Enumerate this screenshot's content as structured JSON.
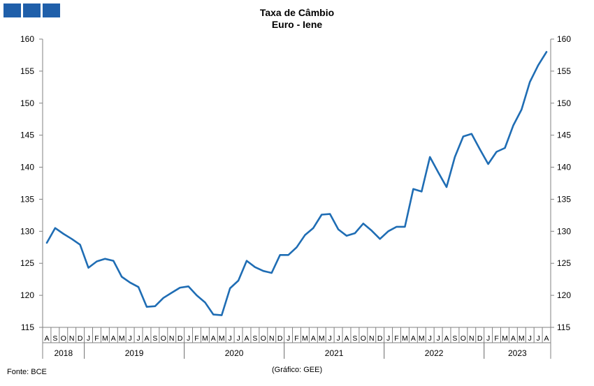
{
  "header": {
    "title_line1": "Taxa de Câmbio",
    "title_line2": "Euro - Iene"
  },
  "footer": {
    "source": "Fonte: BCE",
    "credit": "(Gráfico: GEE)"
  },
  "colors": {
    "line": "#1f6db4",
    "logo": "#1f5faa",
    "axis": "#808080"
  },
  "chart_data": {
    "type": "line",
    "title": "Taxa de Câmbio Euro - Iene",
    "ylim": [
      115,
      160
    ],
    "yticks": [
      115,
      120,
      125,
      130,
      135,
      140,
      145,
      150,
      155,
      160
    ],
    "y_axis_sides": [
      "left",
      "right"
    ],
    "grid": false,
    "legend": "none",
    "month_labels": [
      "A",
      "S",
      "O",
      "N",
      "D",
      "J",
      "F",
      "M",
      "A",
      "M",
      "J",
      "J",
      "A",
      "S",
      "O",
      "N",
      "D",
      "J",
      "F",
      "M",
      "A",
      "M",
      "J",
      "J",
      "A",
      "S",
      "O",
      "N",
      "D",
      "J",
      "F",
      "M",
      "A",
      "M",
      "J",
      "J",
      "A",
      "S",
      "O",
      "N",
      "D",
      "J",
      "F",
      "M",
      "A",
      "M",
      "J",
      "J",
      "A",
      "S",
      "O",
      "N",
      "D",
      "J",
      "F",
      "M",
      "A",
      "M",
      "J",
      "J",
      "A"
    ],
    "years": [
      {
        "label": "2018",
        "start": 0,
        "count": 5
      },
      {
        "label": "2019",
        "start": 5,
        "count": 12
      },
      {
        "label": "2020",
        "start": 17,
        "count": 12
      },
      {
        "label": "2021",
        "start": 29,
        "count": 12
      },
      {
        "label": "2022",
        "start": 41,
        "count": 12
      },
      {
        "label": "2023",
        "start": 53,
        "count": 8
      }
    ],
    "series": [
      {
        "values": [
          128.2,
          130.5,
          129.6,
          128.8,
          127.9,
          124.3,
          125.3,
          125.7,
          125.4,
          122.9,
          122.0,
          121.3,
          118.2,
          118.3,
          119.6,
          120.4,
          121.2,
          121.4,
          120.0,
          118.9,
          117.0,
          116.9,
          121.1,
          122.3,
          125.4,
          124.4,
          123.8,
          123.5,
          126.3,
          126.3,
          127.5,
          129.4,
          130.5,
          132.6,
          132.7,
          130.3,
          129.3,
          129.7,
          131.2,
          130.1,
          128.8,
          130.0,
          130.7,
          130.7,
          136.6,
          136.2,
          141.6,
          139.2,
          136.9,
          141.6,
          144.8,
          145.2,
          142.8,
          140.5,
          142.4,
          143.0,
          146.5,
          149.0,
          153.3,
          155.9,
          158.0
        ]
      }
    ]
  }
}
